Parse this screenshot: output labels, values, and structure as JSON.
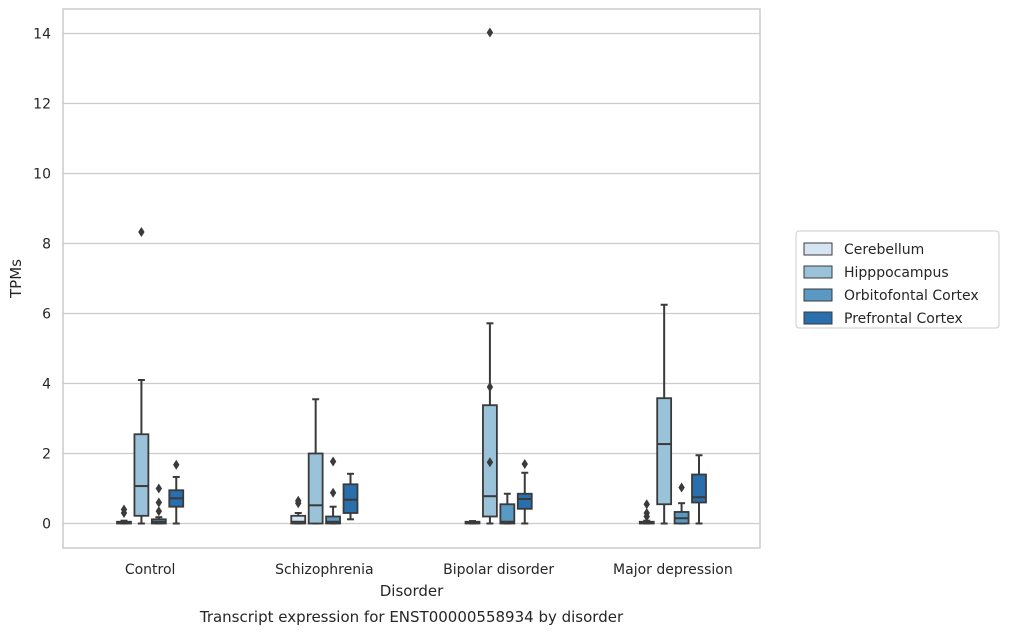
{
  "chart_data": {
    "type": "box",
    "title": "",
    "caption": "Transcript expression for ENST00000558934 by disorder",
    "xlabel": "Disorder",
    "ylabel": "TPMs",
    "categories": [
      "Control",
      "Schizophrenia",
      "Bipolar disorder",
      "Major depression"
    ],
    "ylim": [
      -0.7,
      14.7
    ],
    "yticks": [
      0,
      2,
      4,
      6,
      8,
      10,
      12,
      14
    ],
    "grid": "horizontal",
    "legend_position": "right",
    "series": [
      {
        "name": "Cerebellum",
        "color": "#d5e5f2",
        "boxes": [
          {
            "whisker_low": 0,
            "q1": 0,
            "median": 0.02,
            "q3": 0.05,
            "whisker_high": 0.08,
            "outliers": [
              0.3,
              0.4
            ]
          },
          {
            "whisker_low": 0,
            "q1": 0,
            "median": 0.05,
            "q3": 0.22,
            "whisker_high": 0.3,
            "outliers": [
              0.58,
              0.65
            ]
          },
          {
            "whisker_low": 0,
            "q1": 0,
            "median": 0.02,
            "q3": 0.05,
            "whisker_high": 0.07,
            "outliers": []
          },
          {
            "whisker_low": 0,
            "q1": 0,
            "median": 0.02,
            "q3": 0.05,
            "whisker_high": 0.08,
            "outliers": [
              0.2,
              0.3,
              0.55
            ]
          }
        ]
      },
      {
        "name": "Hipppocampus",
        "color": "#9ac2d9",
        "boxes": [
          {
            "whisker_low": 0,
            "q1": 0.22,
            "median": 1.07,
            "q3": 2.55,
            "whisker_high": 4.1,
            "outliers": [
              8.33
            ]
          },
          {
            "whisker_low": 0,
            "q1": 0.0,
            "median": 0.52,
            "q3": 2.0,
            "whisker_high": 3.55,
            "outliers": []
          },
          {
            "whisker_low": 0,
            "q1": 0.2,
            "median": 0.78,
            "q3": 3.38,
            "whisker_high": 5.72,
            "outliers": [
              1.75,
              3.9,
              14.03
            ]
          },
          {
            "whisker_low": 0,
            "q1": 0.55,
            "median": 2.27,
            "q3": 3.58,
            "whisker_high": 6.25,
            "outliers": []
          }
        ]
      },
      {
        "name": "Orbitofontal Cortex",
        "color": "#5999c4",
        "boxes": [
          {
            "whisker_low": 0,
            "q1": 0,
            "median": 0.05,
            "q3": 0.12,
            "whisker_high": 0.18,
            "outliers": [
              0.35,
              0.6,
              1.0
            ]
          },
          {
            "whisker_low": 0,
            "q1": 0,
            "median": 0.05,
            "q3": 0.2,
            "whisker_high": 0.48,
            "outliers": [
              0.88,
              1.77
            ]
          },
          {
            "whisker_low": 0,
            "q1": 0,
            "median": 0.05,
            "q3": 0.55,
            "whisker_high": 0.85,
            "outliers": []
          },
          {
            "whisker_low": 0,
            "q1": 0,
            "median": 0.15,
            "q3": 0.33,
            "whisker_high": 0.58,
            "outliers": [
              1.03
            ]
          }
        ]
      },
      {
        "name": "Prefrontal Cortex",
        "color": "#2a6fad",
        "boxes": [
          {
            "whisker_low": 0,
            "q1": 0.48,
            "median": 0.72,
            "q3": 0.95,
            "whisker_high": 1.33,
            "outliers": [
              1.68
            ]
          },
          {
            "whisker_low": 0.12,
            "q1": 0.3,
            "median": 0.68,
            "q3": 1.12,
            "whisker_high": 1.42,
            "outliers": []
          },
          {
            "whisker_low": 0,
            "q1": 0.42,
            "median": 0.7,
            "q3": 0.85,
            "whisker_high": 1.45,
            "outliers": [
              1.7
            ]
          },
          {
            "whisker_low": 0,
            "q1": 0.6,
            "median": 0.75,
            "q3": 1.4,
            "whisker_high": 1.95,
            "outliers": []
          }
        ]
      }
    ]
  },
  "legend": {
    "items": [
      "Cerebellum",
      "Hipppocampus",
      "Orbitofontal Cortex",
      "Prefrontal Cortex"
    ]
  }
}
